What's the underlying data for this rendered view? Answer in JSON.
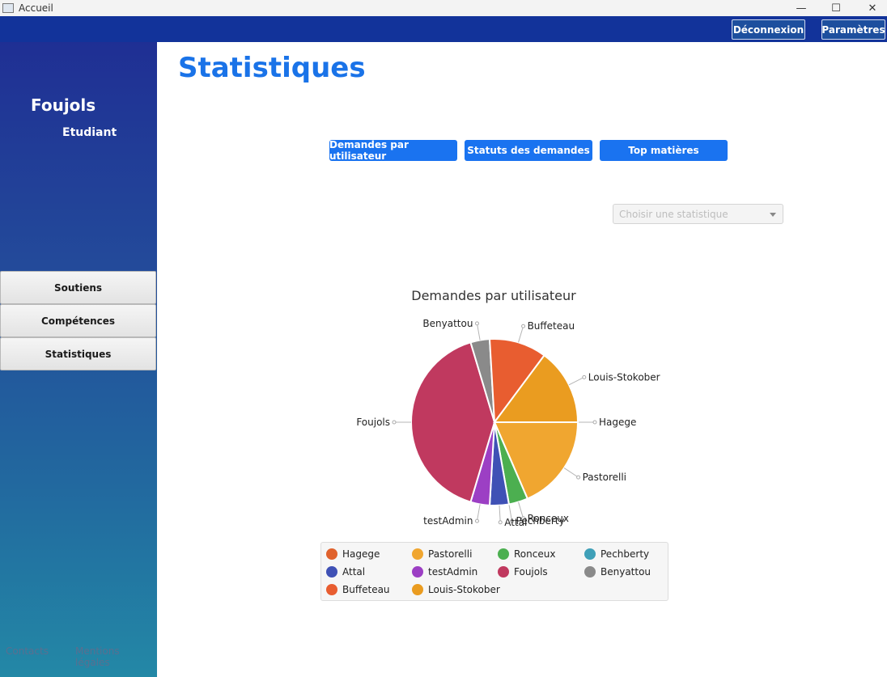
{
  "window": {
    "title": "Accueil",
    "controls": [
      "—",
      "☐",
      "✕"
    ]
  },
  "topbar": {
    "logout_label": "Déconnexion",
    "settings_label": "Paramètres"
  },
  "sidebar": {
    "user_name": "Foujols",
    "user_role": "Etudiant",
    "items": [
      {
        "label": "Soutiens"
      },
      {
        "label": "Compétences"
      },
      {
        "label": "Statistiques"
      }
    ],
    "footer": {
      "contacts": "Contacts",
      "legal": "Mentions légales"
    }
  },
  "main": {
    "title": "Statistiques",
    "buttons": [
      {
        "label": "Demandes par utilisateur"
      },
      {
        "label": "Statuts des demandes"
      },
      {
        "label": "Top matières"
      }
    ],
    "select": {
      "placeholder": "Choisir une statistique"
    }
  },
  "chart_data": {
    "type": "pie",
    "title": "Demandes par utilisateur",
    "legend_position": "bottom",
    "slices": [
      {
        "label": "Hagege",
        "value": 0,
        "color": "#e0622d"
      },
      {
        "label": "Pastorelli",
        "value": 5,
        "color": "#f0a630"
      },
      {
        "label": "Ronceux",
        "value": 1,
        "color": "#4caf50"
      },
      {
        "label": "Pechberty",
        "value": 0,
        "color": "#3fa0b8"
      },
      {
        "label": "Attal",
        "value": 1,
        "color": "#3f51b5"
      },
      {
        "label": "testAdmin",
        "value": 1,
        "color": "#9c3fc4"
      },
      {
        "label": "Foujols",
        "value": 11,
        "color": "#c0395f"
      },
      {
        "label": "Benyattou",
        "value": 1,
        "color": "#8a8a8a"
      },
      {
        "label": "Buffeteau",
        "value": 3,
        "color": "#e85d30"
      },
      {
        "label": "Louis-Stokober",
        "value": 4,
        "color": "#ea9c20"
      }
    ]
  }
}
